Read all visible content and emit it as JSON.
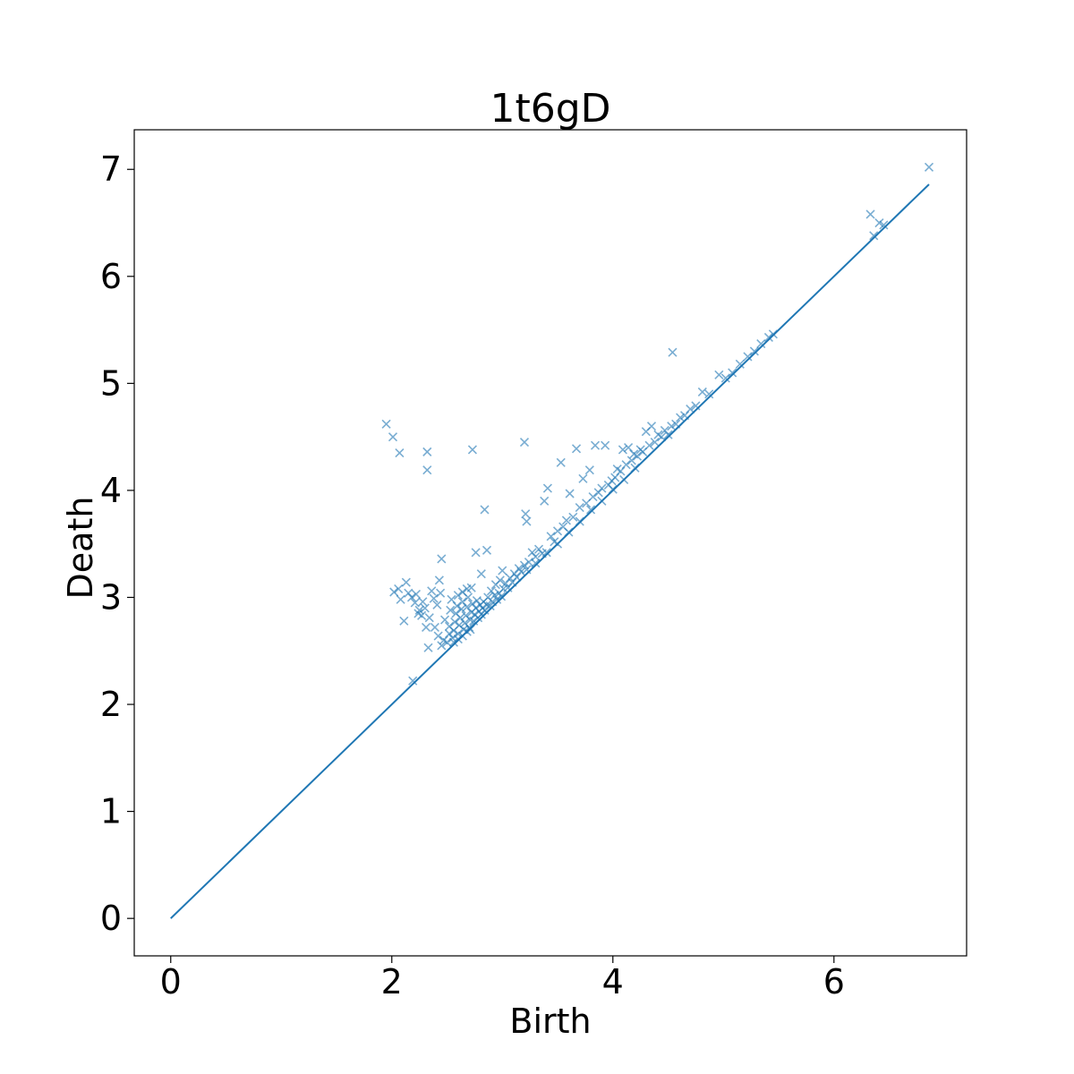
{
  "chart_data": {
    "type": "scatter",
    "title": "1t6gD",
    "xlabel": "Birth",
    "ylabel": "Death",
    "xlim": [
      -0.33,
      7.2
    ],
    "ylim": [
      -0.35,
      7.37
    ],
    "xticks": [
      0,
      2,
      4,
      6
    ],
    "yticks": [
      0,
      1,
      2,
      3,
      4,
      5,
      6,
      7
    ],
    "grid": false,
    "marker": "x",
    "color": "#1f77b4",
    "diagonal": {
      "from": [
        0,
        0
      ],
      "to": [
        6.86,
        6.86
      ]
    },
    "points": [
      [
        1.95,
        4.62
      ],
      [
        2.01,
        4.5
      ],
      [
        2.07,
        4.35
      ],
      [
        2.32,
        4.36
      ],
      [
        2.32,
        4.19
      ],
      [
        2.73,
        4.38
      ],
      [
        3.2,
        4.45
      ],
      [
        4.54,
        5.29
      ],
      [
        6.33,
        6.58
      ],
      [
        6.36,
        6.38
      ],
      [
        6.41,
        6.5
      ],
      [
        6.45,
        6.48
      ],
      [
        6.86,
        7.02
      ],
      [
        2.84,
        3.82
      ],
      [
        2.76,
        3.42
      ],
      [
        2.86,
        3.44
      ],
      [
        2.81,
        3.22
      ],
      [
        2.45,
        3.36
      ],
      [
        2.02,
        3.05
      ],
      [
        2.06,
        3.08
      ],
      [
        2.08,
        2.98
      ],
      [
        2.13,
        3.14
      ],
      [
        2.11,
        2.78
      ],
      [
        2.15,
        3.04
      ],
      [
        2.18,
        3.0
      ],
      [
        2.21,
        2.95
      ],
      [
        2.24,
        2.85
      ],
      [
        2.27,
        2.83
      ],
      [
        2.3,
        2.9
      ],
      [
        2.31,
        2.72
      ],
      [
        2.33,
        2.53
      ],
      [
        2.36,
        3.06
      ],
      [
        2.38,
        2.99
      ],
      [
        2.41,
        2.93
      ],
      [
        2.43,
        3.16
      ],
      [
        2.44,
        3.04
      ],
      [
        2.19,
        2.22
      ],
      [
        2.22,
        3.03
      ],
      [
        2.25,
        2.88
      ],
      [
        2.28,
        2.96
      ],
      [
        2.34,
        2.81
      ],
      [
        2.39,
        2.72
      ],
      [
        2.42,
        2.64
      ],
      [
        2.45,
        2.55
      ],
      [
        2.47,
        2.6
      ],
      [
        2.48,
        2.79
      ],
      [
        2.5,
        2.58
      ],
      [
        2.52,
        2.73
      ],
      [
        2.53,
        2.88
      ],
      [
        2.54,
        2.98
      ],
      [
        2.55,
        2.62
      ],
      [
        2.56,
        2.69
      ],
      [
        2.57,
        2.77
      ],
      [
        2.58,
        2.85
      ],
      [
        2.59,
        2.92
      ],
      [
        2.6,
        2.66
      ],
      [
        2.61,
        2.74
      ],
      [
        2.62,
        2.81
      ],
      [
        2.63,
        2.89
      ],
      [
        2.64,
        2.96
      ],
      [
        2.65,
        2.7
      ],
      [
        2.66,
        2.76
      ],
      [
        2.67,
        2.83
      ],
      [
        2.68,
        2.91
      ],
      [
        2.69,
        3.0
      ],
      [
        2.7,
        2.72
      ],
      [
        2.71,
        2.79
      ],
      [
        2.72,
        2.86
      ],
      [
        2.73,
        2.94
      ],
      [
        2.74,
        2.78
      ],
      [
        2.75,
        2.84
      ],
      [
        2.76,
        2.9
      ],
      [
        2.77,
        2.97
      ],
      [
        2.78,
        2.81
      ],
      [
        2.79,
        2.87
      ],
      [
        2.8,
        2.93
      ],
      [
        2.81,
        2.84
      ],
      [
        2.82,
        2.9
      ],
      [
        2.83,
        2.96
      ],
      [
        2.84,
        2.88
      ],
      [
        2.86,
        2.93
      ],
      [
        2.87,
        3.0
      ],
      [
        2.89,
        2.92
      ],
      [
        2.91,
        2.96
      ],
      [
        2.93,
        3.02
      ],
      [
        2.95,
        2.98
      ],
      [
        2.97,
        3.04
      ],
      [
        2.99,
        3.01
      ],
      [
        3.0,
        3.25
      ],
      [
        3.01,
        3.08
      ],
      [
        3.03,
        3.13
      ],
      [
        3.05,
        3.09
      ],
      [
        3.07,
        3.18
      ],
      [
        3.09,
        3.14
      ],
      [
        3.11,
        3.22
      ],
      [
        3.13,
        3.19
      ],
      [
        3.15,
        3.27
      ],
      [
        3.17,
        3.24
      ],
      [
        3.2,
        3.3
      ],
      [
        3.22,
        3.26
      ],
      [
        3.24,
        3.33
      ],
      [
        3.21,
        3.78
      ],
      [
        3.22,
        3.71
      ],
      [
        3.27,
        3.42
      ],
      [
        3.3,
        3.38
      ],
      [
        3.33,
        3.45
      ],
      [
        3.36,
        3.41
      ],
      [
        3.38,
        3.9
      ],
      [
        3.41,
        4.02
      ],
      [
        3.44,
        3.57
      ],
      [
        3.47,
        3.52
      ],
      [
        3.5,
        3.62
      ],
      [
        3.53,
        4.26
      ],
      [
        3.55,
        3.66
      ],
      [
        3.58,
        3.72
      ],
      [
        3.61,
        3.97
      ],
      [
        3.64,
        3.75
      ],
      [
        3.67,
        4.39
      ],
      [
        3.7,
        3.84
      ],
      [
        3.73,
        4.11
      ],
      [
        3.76,
        3.88
      ],
      [
        3.79,
        4.19
      ],
      [
        3.82,
        3.94
      ],
      [
        3.84,
        4.42
      ],
      [
        3.87,
        3.98
      ],
      [
        3.9,
        4.02
      ],
      [
        3.93,
        4.42
      ],
      [
        3.96,
        4.05
      ],
      [
        3.99,
        4.09
      ],
      [
        4.02,
        4.12
      ],
      [
        4.04,
        4.2
      ],
      [
        4.07,
        4.18
      ],
      [
        4.09,
        4.38
      ],
      [
        4.12,
        4.24
      ],
      [
        4.14,
        4.4
      ],
      [
        4.17,
        4.28
      ],
      [
        4.19,
        4.34
      ],
      [
        4.22,
        4.32
      ],
      [
        4.25,
        4.38
      ],
      [
        4.27,
        4.36
      ],
      [
        4.3,
        4.55
      ],
      [
        4.33,
        4.42
      ],
      [
        4.35,
        4.6
      ],
      [
        4.38,
        4.45
      ],
      [
        4.41,
        4.52
      ],
      [
        4.44,
        4.5
      ],
      [
        4.47,
        4.56
      ],
      [
        4.5,
        4.52
      ],
      [
        4.53,
        4.6
      ],
      [
        4.57,
        4.62
      ],
      [
        4.61,
        4.68
      ],
      [
        4.65,
        4.7
      ],
      [
        4.7,
        4.76
      ],
      [
        4.75,
        4.79
      ],
      [
        4.81,
        4.92
      ],
      [
        4.87,
        4.9
      ],
      [
        4.96,
        5.08
      ],
      [
        5.02,
        5.05
      ],
      [
        5.08,
        5.1
      ],
      [
        5.15,
        5.18
      ],
      [
        5.22,
        5.25
      ],
      [
        5.28,
        5.3
      ],
      [
        5.34,
        5.37
      ],
      [
        5.41,
        5.43
      ],
      [
        5.45,
        5.46
      ],
      [
        2.9,
        3.06
      ],
      [
        2.94,
        3.12
      ],
      [
        2.98,
        3.16
      ],
      [
        2.6,
        3.02
      ],
      [
        2.64,
        3.05
      ],
      [
        2.68,
        3.08
      ],
      [
        2.72,
        3.09
      ],
      [
        2.52,
        2.66
      ],
      [
        2.56,
        2.58
      ],
      [
        2.6,
        2.61
      ],
      [
        2.64,
        2.64
      ],
      [
        2.68,
        2.68
      ],
      [
        2.71,
        2.7
      ],
      [
        3.3,
        3.32
      ],
      [
        3.4,
        3.42
      ],
      [
        3.5,
        3.5
      ],
      [
        3.6,
        3.61
      ],
      [
        3.7,
        3.71
      ],
      [
        3.8,
        3.82
      ],
      [
        3.9,
        3.9
      ],
      [
        4.0,
        4.01
      ],
      [
        4.1,
        4.1
      ],
      [
        4.2,
        4.21
      ]
    ]
  }
}
